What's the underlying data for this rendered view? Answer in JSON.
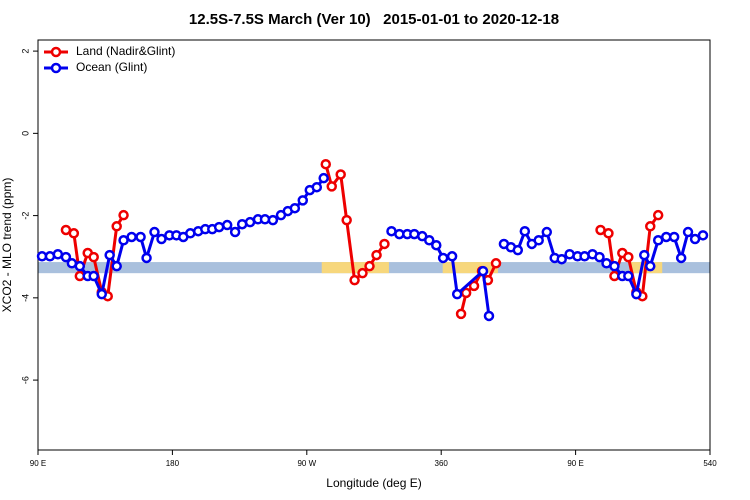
{
  "chart_data": {
    "type": "line",
    "title": "12.5S-7.5S March (Ver 10)   2015-01-01 to 2020-12-18",
    "x_label": "Longitude (deg E)",
    "y_label": "XCO2 - MLO trend (ppm)",
    "xlim": [
      90,
      540
    ],
    "ylim": [
      -7.7,
      2.27
    ],
    "xticks": [
      {
        "value": 90,
        "label": "90 E"
      },
      180,
      {
        "value": 270,
        "label": "90 W"
      },
      360,
      {
        "value": 450,
        "label": "90 E"
      },
      540
    ],
    "yticks": [
      2,
      0,
      -2,
      -4,
      -6
    ],
    "legend": "top-left",
    "band": {
      "ylim": [
        -3.4,
        -3.13
      ],
      "color": "#a9c0dd",
      "land": [
        [
          280,
          325
        ],
        [
          361,
          398
        ],
        [
          486,
          508
        ]
      ],
      "land_color": "#f7d77c"
    },
    "series": [
      {
        "name": "Land (Nadir&Glint)",
        "color": "#ee0000",
        "x": [
          108.7,
          114,
          118,
          123.3,
          127.3,
          132.7,
          136.7,
          142.7,
          147.3,
          null,
          282.7,
          286.7,
          292.7,
          296.7,
          302,
          307.3,
          312,
          316.7,
          322,
          null,
          373.3,
          376.7,
          382,
          387.3,
          391.3,
          396.7,
          null,
          466.7,
          472,
          476,
          481.3,
          485.3,
          490.7,
          494.7,
          500,
          505.3
        ],
        "values": [
          -2.35,
          -2.43,
          -3.47,
          -2.91,
          -3.01,
          -3.86,
          -3.96,
          -2.26,
          -1.99,
          null,
          -0.75,
          -1.29,
          -1.0,
          -2.11,
          -3.57,
          -3.4,
          -3.23,
          -2.96,
          -2.69,
          null,
          -4.39,
          -3.88,
          -3.71,
          -3.35,
          -3.57,
          -3.16,
          null,
          -2.35,
          -2.43,
          -3.47,
          -2.91,
          -3.01,
          -3.86,
          -3.96,
          -2.26,
          -1.99
        ]
      },
      {
        "name": "Ocean (Glint)",
        "color": "#0000ee",
        "x": [
          92.7,
          98,
          103.3,
          108.7,
          112.7,
          118,
          123.3,
          127.3,
          132.7,
          138,
          142.7,
          147.3,
          152.7,
          158.7,
          162.7,
          168,
          172.7,
          178,
          182.7,
          187.3,
          192,
          197.3,
          202,
          206.7,
          211.3,
          216.7,
          222,
          226.7,
          232,
          237.3,
          242,
          247.3,
          252.7,
          257.3,
          262,
          267.3,
          272,
          276.7,
          281.3,
          null,
          326.7,
          332,
          337.3,
          342,
          347.3,
          352,
          356.7,
          361.3,
          367.3,
          370.7,
          388,
          392,
          null,
          402,
          406.7,
          411.3,
          416,
          420.7,
          425.3,
          430.7,
          436,
          440.7,
          446,
          451.3,
          456,
          461.3,
          466,
          470.7,
          476,
          481.3,
          485.3,
          490.7,
          496,
          500,
          505.3,
          510.7,
          516,
          520.7,
          525.3,
          530,
          535.3
        ],
        "values": [
          -2.99,
          -2.99,
          -2.94,
          -3.01,
          -3.16,
          -3.23,
          -3.47,
          -3.47,
          -3.91,
          -2.96,
          -3.23,
          -2.6,
          -2.52,
          -2.52,
          -3.03,
          -2.4,
          -2.57,
          -2.48,
          -2.48,
          -2.52,
          -2.43,
          -2.38,
          -2.33,
          -2.33,
          -2.28,
          -2.23,
          -2.4,
          -2.21,
          -2.16,
          -2.09,
          -2.09,
          -2.11,
          -1.99,
          -1.89,
          -1.82,
          -1.63,
          -1.38,
          -1.31,
          -1.09,
          null,
          -2.38,
          -2.45,
          -2.45,
          -2.45,
          -2.5,
          -2.6,
          -2.72,
          -3.03,
          -2.99,
          -3.91,
          -3.35,
          -4.44,
          null,
          -2.69,
          -2.77,
          -2.84,
          -2.38,
          -2.69,
          -2.6,
          -2.4,
          -3.03,
          -3.06,
          -2.94,
          -2.99,
          -2.99,
          -2.94,
          -3.01,
          -3.16,
          -3.23,
          -3.47,
          -3.47,
          -3.91,
          -2.96,
          -3.23,
          -2.6,
          -2.52,
          -2.52,
          -3.03,
          -2.4,
          -2.57,
          -2.48
        ]
      }
    ]
  }
}
